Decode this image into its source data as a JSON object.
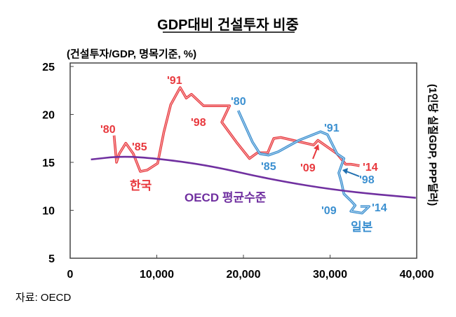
{
  "chart_data": {
    "type": "line",
    "title": "GDP대비 건설투자 비중",
    "ylabel": "(건설투자/GDP, 명목기준, %)",
    "xlabel": "(1인당 실질GDP, PPP달러)",
    "source": "자료: OECD",
    "xlim": [
      0,
      40000
    ],
    "ylim": [
      5,
      25
    ],
    "xticks": [
      "0",
      "10,000",
      "20,000",
      "30,000",
      "40,000"
    ],
    "yticks": [
      "5",
      "10",
      "15",
      "20",
      "25"
    ],
    "grid": false,
    "series": [
      {
        "name": "한국",
        "color": "#e8383d",
        "x": [
          5070,
          5350,
          5670,
          6420,
          7290,
          8100,
          8900,
          10100,
          10800,
          11600,
          12700,
          13400,
          14000,
          15400,
          18400,
          17500,
          19200,
          20700,
          21600,
          22800,
          23500,
          24300,
          28100,
          28600,
          30800,
          31800,
          32400,
          33400
        ],
        "y": [
          17.8,
          15.0,
          15.9,
          17.0,
          15.9,
          14.05,
          14.2,
          14.9,
          18.1,
          21.0,
          22.8,
          21.7,
          22.1,
          20.9,
          20.9,
          19.2,
          17.1,
          15.4,
          16.0,
          16.0,
          17.5,
          17.6,
          16.8,
          17.3,
          15.9,
          14.8,
          14.8,
          14.65
        ]
      },
      {
        "name": "일본",
        "color": "#3a8fd0",
        "x": [
          19400,
          21050,
          21900,
          22900,
          24000,
          26400,
          28900,
          29700,
          30800,
          31600,
          31000,
          31300,
          31600,
          32400,
          32900,
          32400,
          33700,
          34500,
          33500
        ],
        "y": [
          20.4,
          17.1,
          15.9,
          15.75,
          16.1,
          17.3,
          18.2,
          17.9,
          15.9,
          15.4,
          13.9,
          12.95,
          11.7,
          11.0,
          10.5,
          9.9,
          9.7,
          10.4,
          10.4
        ]
      },
      {
        "name": "OECD 평균수준",
        "color": "#7030a0",
        "x": [
          2400,
          5900,
          10100,
          16200,
          23200,
          31300,
          39900
        ],
        "y": [
          15.3,
          15.65,
          15.4,
          14.65,
          13.2,
          12.0,
          11.3
        ]
      }
    ],
    "annotations": [
      {
        "text": "'80",
        "color": "#e8383d"
      },
      {
        "text": "'85",
        "color": "#e8383d"
      },
      {
        "text": "'91",
        "color": "#e8383d"
      },
      {
        "text": "'98",
        "color": "#e8383d"
      },
      {
        "text": "'09",
        "color": "#e8383d"
      },
      {
        "text": "'14",
        "color": "#e8383d"
      },
      {
        "text": "한국",
        "color": "#e8383d"
      },
      {
        "text": "'80",
        "color": "#3a8fd0"
      },
      {
        "text": "'85",
        "color": "#3a8fd0"
      },
      {
        "text": "'91",
        "color": "#3a8fd0"
      },
      {
        "text": "'98",
        "color": "#3a8fd0"
      },
      {
        "text": "'09",
        "color": "#3a8fd0"
      },
      {
        "text": "'14",
        "color": "#3a8fd0"
      },
      {
        "text": "일본",
        "color": "#3a8fd0"
      },
      {
        "text": "OECD 평균수준",
        "color": "#7030a0"
      }
    ]
  }
}
